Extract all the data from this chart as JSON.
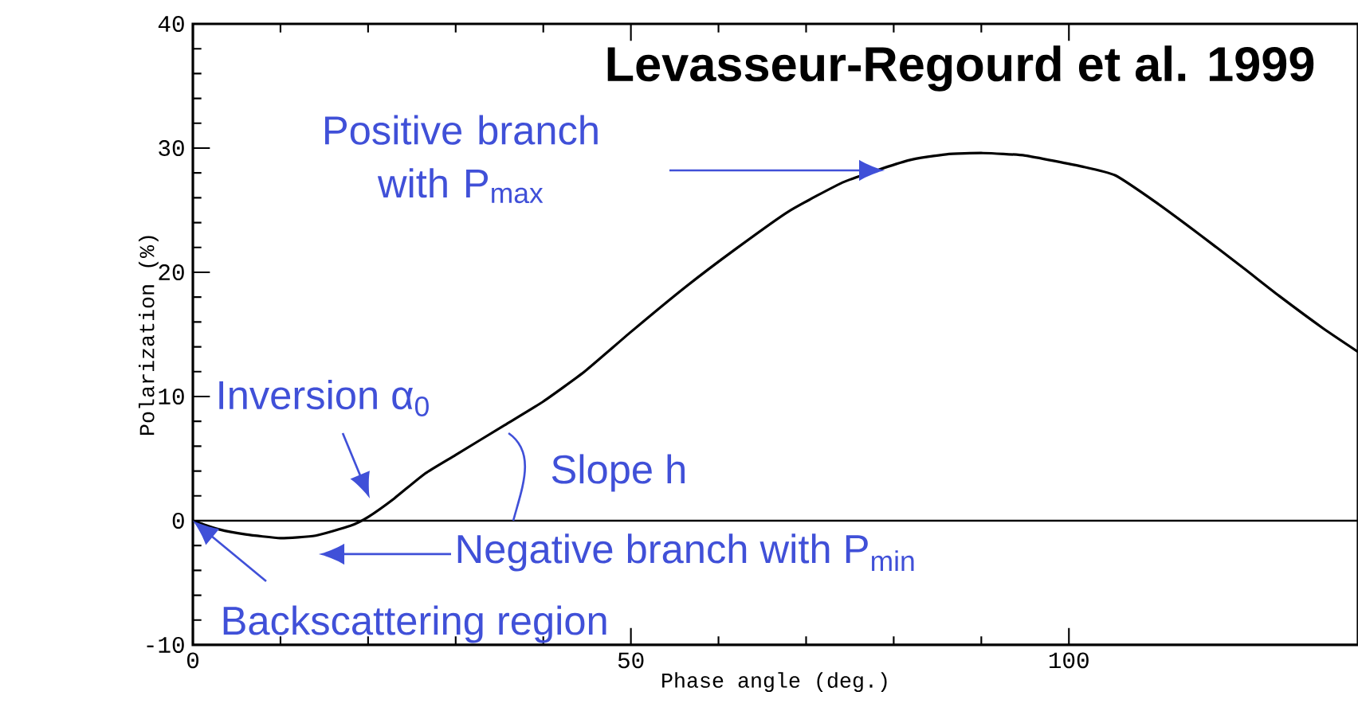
{
  "chart_data": {
    "type": "line",
    "title": "Levasseur-Regourd et al. 1999",
    "xlabel": "Phase angle (deg.)",
    "ylabel": "Polarization (%)",
    "xlim": [
      0,
      133
    ],
    "ylim": [
      -10,
      40
    ],
    "xticks": [
      0,
      50,
      100
    ],
    "yticks": [
      -10,
      0,
      10,
      20,
      30,
      40
    ],
    "ref_lines": [
      {
        "axis": "y",
        "value": 0,
        "color": "#000000"
      }
    ],
    "series": [
      {
        "color": "#000000",
        "x": [
          0,
          3,
          6,
          10,
          14,
          18,
          20,
          23,
          26.5,
          30,
          35.6,
          40,
          44.7,
          50,
          56.2,
          62,
          68,
          74.4,
          81.6,
          86,
          90.2,
          95,
          101.6,
          105.3,
          110,
          115,
          120,
          124,
          129,
          133
        ],
        "values": [
          0,
          -0.7,
          -1.1,
          -1.4,
          -1.2,
          -0.4,
          0.3,
          1.8,
          3.8,
          5.3,
          7.7,
          9.6,
          12.0,
          15.2,
          18.8,
          21.9,
          24.9,
          27.3,
          29.0,
          29.5,
          29.6,
          29.4,
          28.5,
          27.8,
          25.6,
          23.0,
          20.3,
          18.1,
          15.5,
          13.6
        ]
      }
    ],
    "annotations": [
      "Positive branch with P$_{max}$",
      "Inversion α$_{0}$",
      "Slope h",
      "Negative branch with P$_{min}$",
      {
        "text": "Backscattering region",
        "x": 0,
        "y": 0
      }
    ]
  }
}
